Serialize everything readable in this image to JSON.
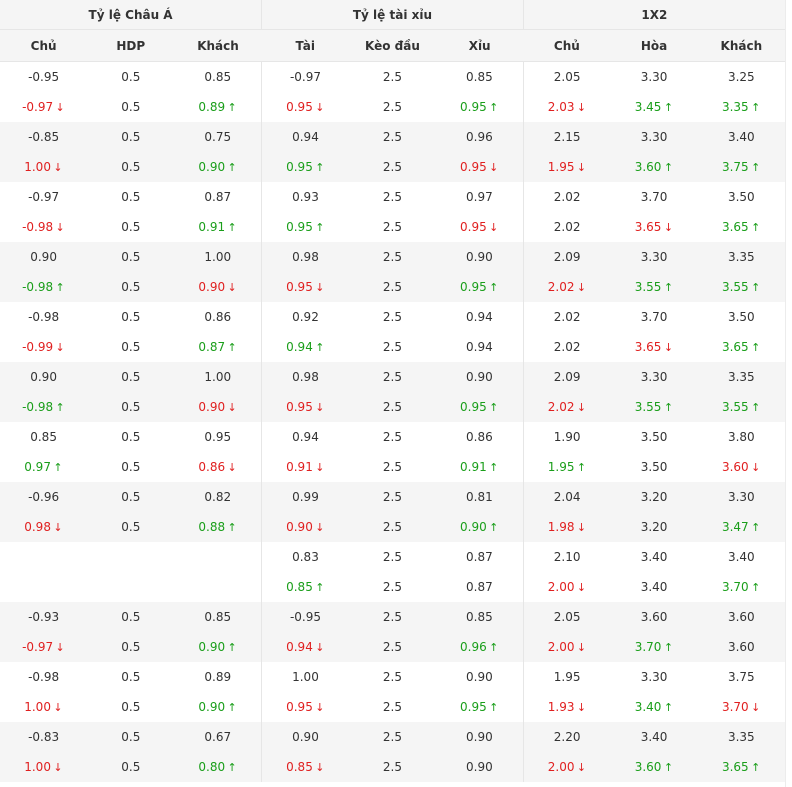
{
  "groups": [
    {
      "label": "Tỷ lệ Châu Á",
      "cols": [
        "Chủ",
        "HDP",
        "Khách"
      ]
    },
    {
      "label": "Tỷ lệ tài xỉu",
      "cols": [
        "Tài",
        "Kèo đầu",
        "Xỉu"
      ]
    },
    {
      "label": "1X2",
      "cols": [
        "Chủ",
        "Hòa",
        "Khách"
      ]
    }
  ],
  "arrow_icons": {
    "up": "↑",
    "down": "↓"
  },
  "colors": {
    "up": "#1a9e1a",
    "down": "#e02020"
  },
  "rows": [
    [
      [
        "-0.95",
        ""
      ],
      [
        "0.5",
        ""
      ],
      [
        "0.85",
        ""
      ],
      [
        "-0.97",
        ""
      ],
      [
        "2.5",
        ""
      ],
      [
        "0.85",
        ""
      ],
      [
        "2.05",
        ""
      ],
      [
        "3.30",
        ""
      ],
      [
        "3.25",
        ""
      ]
    ],
    [
      [
        "-0.97",
        "down"
      ],
      [
        "0.5",
        ""
      ],
      [
        "0.89",
        "up"
      ],
      [
        "0.95",
        "down"
      ],
      [
        "2.5",
        ""
      ],
      [
        "0.95",
        "up"
      ],
      [
        "2.03",
        "down"
      ],
      [
        "3.45",
        "up"
      ],
      [
        "3.35",
        "up"
      ]
    ],
    [
      [
        "-0.85",
        ""
      ],
      [
        "0.5",
        ""
      ],
      [
        "0.75",
        ""
      ],
      [
        "0.94",
        ""
      ],
      [
        "2.5",
        ""
      ],
      [
        "0.96",
        ""
      ],
      [
        "2.15",
        ""
      ],
      [
        "3.30",
        ""
      ],
      [
        "3.40",
        ""
      ]
    ],
    [
      [
        "1.00",
        "down"
      ],
      [
        "0.5",
        ""
      ],
      [
        "0.90",
        "up"
      ],
      [
        "0.95",
        "up"
      ],
      [
        "2.5",
        ""
      ],
      [
        "0.95",
        "down"
      ],
      [
        "1.95",
        "down"
      ],
      [
        "3.60",
        "up"
      ],
      [
        "3.75",
        "up"
      ]
    ],
    [
      [
        "-0.97",
        ""
      ],
      [
        "0.5",
        ""
      ],
      [
        "0.87",
        ""
      ],
      [
        "0.93",
        ""
      ],
      [
        "2.5",
        ""
      ],
      [
        "0.97",
        ""
      ],
      [
        "2.02",
        ""
      ],
      [
        "3.70",
        ""
      ],
      [
        "3.50",
        ""
      ]
    ],
    [
      [
        "-0.98",
        "down"
      ],
      [
        "0.5",
        ""
      ],
      [
        "0.91",
        "up"
      ],
      [
        "0.95",
        "up"
      ],
      [
        "2.5",
        ""
      ],
      [
        "0.95",
        "down"
      ],
      [
        "2.02",
        ""
      ],
      [
        "3.65",
        "down"
      ],
      [
        "3.65",
        "up"
      ]
    ],
    [
      [
        "0.90",
        ""
      ],
      [
        "0.5",
        ""
      ],
      [
        "1.00",
        ""
      ],
      [
        "0.98",
        ""
      ],
      [
        "2.5",
        ""
      ],
      [
        "0.90",
        ""
      ],
      [
        "2.09",
        ""
      ],
      [
        "3.30",
        ""
      ],
      [
        "3.35",
        ""
      ]
    ],
    [
      [
        "-0.98",
        "up"
      ],
      [
        "0.5",
        ""
      ],
      [
        "0.90",
        "down"
      ],
      [
        "0.95",
        "down"
      ],
      [
        "2.5",
        ""
      ],
      [
        "0.95",
        "up"
      ],
      [
        "2.02",
        "down"
      ],
      [
        "3.55",
        "up"
      ],
      [
        "3.55",
        "up"
      ]
    ],
    [
      [
        "-0.98",
        ""
      ],
      [
        "0.5",
        ""
      ],
      [
        "0.86",
        ""
      ],
      [
        "0.92",
        ""
      ],
      [
        "2.5",
        ""
      ],
      [
        "0.94",
        ""
      ],
      [
        "2.02",
        ""
      ],
      [
        "3.70",
        ""
      ],
      [
        "3.50",
        ""
      ]
    ],
    [
      [
        "-0.99",
        "down"
      ],
      [
        "0.5",
        ""
      ],
      [
        "0.87",
        "up"
      ],
      [
        "0.94",
        "up"
      ],
      [
        "2.5",
        ""
      ],
      [
        "0.94",
        ""
      ],
      [
        "2.02",
        ""
      ],
      [
        "3.65",
        "down"
      ],
      [
        "3.65",
        "up"
      ]
    ],
    [
      [
        "0.90",
        ""
      ],
      [
        "0.5",
        ""
      ],
      [
        "1.00",
        ""
      ],
      [
        "0.98",
        ""
      ],
      [
        "2.5",
        ""
      ],
      [
        "0.90",
        ""
      ],
      [
        "2.09",
        ""
      ],
      [
        "3.30",
        ""
      ],
      [
        "3.35",
        ""
      ]
    ],
    [
      [
        "-0.98",
        "up"
      ],
      [
        "0.5",
        ""
      ],
      [
        "0.90",
        "down"
      ],
      [
        "0.95",
        "down"
      ],
      [
        "2.5",
        ""
      ],
      [
        "0.95",
        "up"
      ],
      [
        "2.02",
        "down"
      ],
      [
        "3.55",
        "up"
      ],
      [
        "3.55",
        "up"
      ]
    ],
    [
      [
        "0.85",
        ""
      ],
      [
        "0.5",
        ""
      ],
      [
        "0.95",
        ""
      ],
      [
        "0.94",
        ""
      ],
      [
        "2.5",
        ""
      ],
      [
        "0.86",
        ""
      ],
      [
        "1.90",
        ""
      ],
      [
        "3.50",
        ""
      ],
      [
        "3.80",
        ""
      ]
    ],
    [
      [
        "0.97",
        "up"
      ],
      [
        "0.5",
        ""
      ],
      [
        "0.86",
        "down"
      ],
      [
        "0.91",
        "down"
      ],
      [
        "2.5",
        ""
      ],
      [
        "0.91",
        "up"
      ],
      [
        "1.95",
        "up"
      ],
      [
        "3.50",
        ""
      ],
      [
        "3.60",
        "down"
      ]
    ],
    [
      [
        "-0.96",
        ""
      ],
      [
        "0.5",
        ""
      ],
      [
        "0.82",
        ""
      ],
      [
        "0.99",
        ""
      ],
      [
        "2.5",
        ""
      ],
      [
        "0.81",
        ""
      ],
      [
        "2.04",
        ""
      ],
      [
        "3.20",
        ""
      ],
      [
        "3.30",
        ""
      ]
    ],
    [
      [
        "0.98",
        "down"
      ],
      [
        "0.5",
        ""
      ],
      [
        "0.88",
        "up"
      ],
      [
        "0.90",
        "down"
      ],
      [
        "2.5",
        ""
      ],
      [
        "0.90",
        "up"
      ],
      [
        "1.98",
        "down"
      ],
      [
        "3.20",
        ""
      ],
      [
        "3.47",
        "up"
      ]
    ],
    [
      [
        "",
        ""
      ],
      [
        "",
        ""
      ],
      [
        "",
        ""
      ],
      [
        "0.83",
        ""
      ],
      [
        "2.5",
        ""
      ],
      [
        "0.87",
        ""
      ],
      [
        "2.10",
        ""
      ],
      [
        "3.40",
        ""
      ],
      [
        "3.40",
        ""
      ]
    ],
    [
      [
        "",
        ""
      ],
      [
        "",
        ""
      ],
      [
        "",
        ""
      ],
      [
        "0.85",
        "up"
      ],
      [
        "2.5",
        ""
      ],
      [
        "0.87",
        ""
      ],
      [
        "2.00",
        "down"
      ],
      [
        "3.40",
        ""
      ],
      [
        "3.70",
        "up"
      ]
    ],
    [
      [
        "-0.93",
        ""
      ],
      [
        "0.5",
        ""
      ],
      [
        "0.85",
        ""
      ],
      [
        "-0.95",
        ""
      ],
      [
        "2.5",
        ""
      ],
      [
        "0.85",
        ""
      ],
      [
        "2.05",
        ""
      ],
      [
        "3.60",
        ""
      ],
      [
        "3.60",
        ""
      ]
    ],
    [
      [
        "-0.97",
        "down"
      ],
      [
        "0.5",
        ""
      ],
      [
        "0.90",
        "up"
      ],
      [
        "0.94",
        "down"
      ],
      [
        "2.5",
        ""
      ],
      [
        "0.96",
        "up"
      ],
      [
        "2.00",
        "down"
      ],
      [
        "3.70",
        "up"
      ],
      [
        "3.60",
        ""
      ]
    ],
    [
      [
        "-0.98",
        ""
      ],
      [
        "0.5",
        ""
      ],
      [
        "0.89",
        ""
      ],
      [
        "1.00",
        ""
      ],
      [
        "2.5",
        ""
      ],
      [
        "0.90",
        ""
      ],
      [
        "1.95",
        ""
      ],
      [
        "3.30",
        ""
      ],
      [
        "3.75",
        ""
      ]
    ],
    [
      [
        "1.00",
        "down"
      ],
      [
        "0.5",
        ""
      ],
      [
        "0.90",
        "up"
      ],
      [
        "0.95",
        "down"
      ],
      [
        "2.5",
        ""
      ],
      [
        "0.95",
        "up"
      ],
      [
        "1.93",
        "down"
      ],
      [
        "3.40",
        "up"
      ],
      [
        "3.70",
        "down"
      ]
    ],
    [
      [
        "-0.83",
        ""
      ],
      [
        "0.5",
        ""
      ],
      [
        "0.67",
        ""
      ],
      [
        "0.90",
        ""
      ],
      [
        "2.5",
        ""
      ],
      [
        "0.90",
        ""
      ],
      [
        "2.20",
        ""
      ],
      [
        "3.40",
        ""
      ],
      [
        "3.35",
        ""
      ]
    ],
    [
      [
        "1.00",
        "down"
      ],
      [
        "0.5",
        ""
      ],
      [
        "0.80",
        "up"
      ],
      [
        "0.85",
        "down"
      ],
      [
        "2.5",
        ""
      ],
      [
        "0.90",
        ""
      ],
      [
        "2.00",
        "down"
      ],
      [
        "3.60",
        "up"
      ],
      [
        "3.65",
        "up"
      ]
    ]
  ]
}
